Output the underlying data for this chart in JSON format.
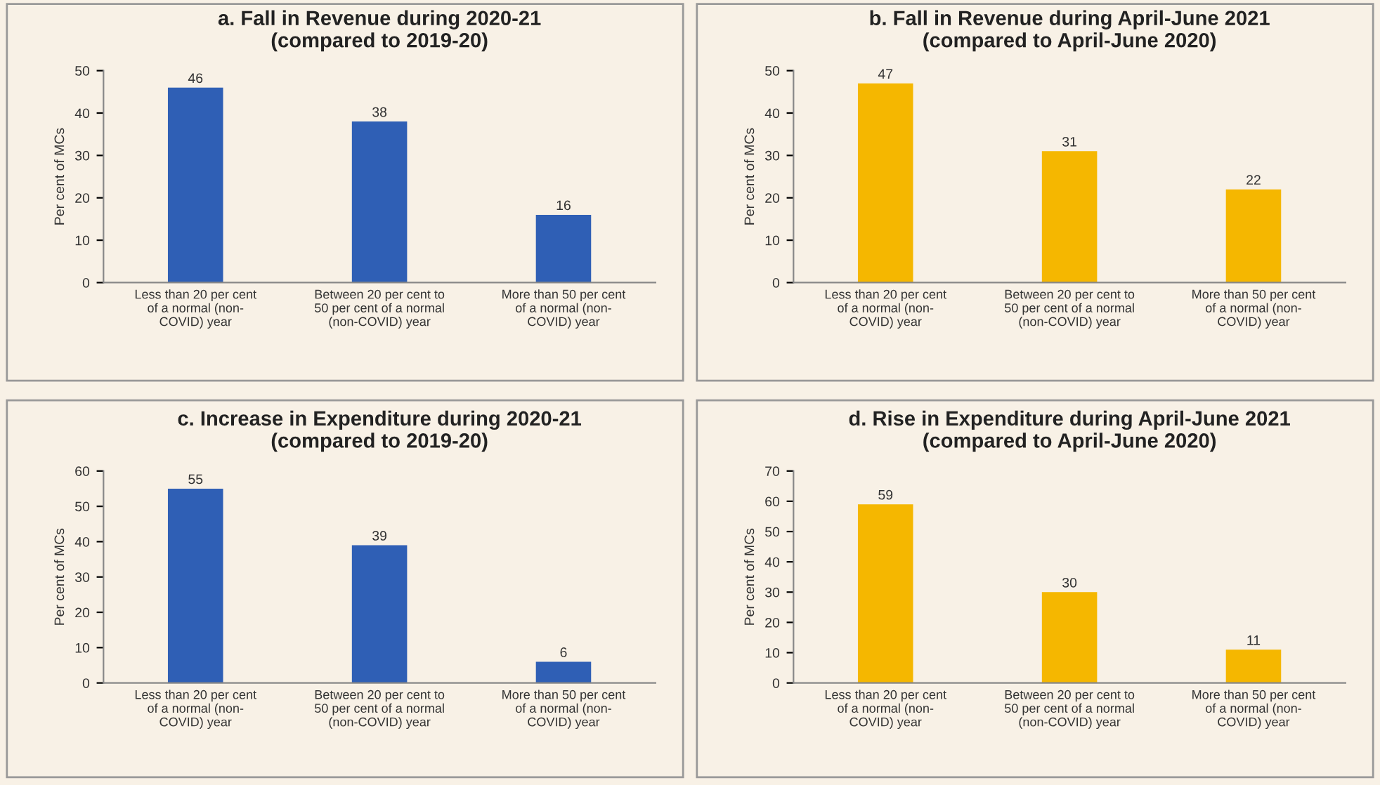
{
  "chart_data": [
    {
      "type": "bar",
      "title": "a. Fall in Revenue during 2020-21\n(compared to 2019-20)",
      "ylabel": "Per cent of MCs",
      "categories": [
        "Less than 20 per cent\nof a normal (non-\nCOVID) year",
        "Between 20 per cent to\n50 per cent of a normal\n(non-COVID) year",
        "More than 50 per cent\nof a normal (non-\nCOVID) year"
      ],
      "values": [
        46,
        38,
        16
      ],
      "color": "#2f5fb5",
      "ylim": [
        0,
        50
      ],
      "yticks": [
        0,
        10,
        20,
        30,
        40,
        50
      ],
      "data_labels": true,
      "grid": false
    },
    {
      "type": "bar",
      "title": "b. Fall in Revenue during April-June 2021\n(compared to April-June 2020)",
      "ylabel": "Per cent of MCs",
      "categories": [
        "Less than 20 per cent\nof a normal (non-\nCOVID) year",
        "Between 20 per cent to\n50 per cent of a normal\n(non-COVID) year",
        "More than 50 per cent\nof a normal (non-\nCOVID) year"
      ],
      "values": [
        47,
        31,
        22
      ],
      "color": "#f5b700",
      "ylim": [
        0,
        50
      ],
      "yticks": [
        0,
        10,
        20,
        30,
        40,
        50
      ],
      "data_labels": true,
      "grid": false
    },
    {
      "type": "bar",
      "title": "c. Increase in Expenditure during 2020-21\n(compared to 2019-20)",
      "ylabel": "Per cent of MCs",
      "categories": [
        "Less than 20 per cent\nof a normal (non-\nCOVID) year",
        "Between 20 per cent to\n50 per cent of a normal\n(non-COVID) year",
        "More than 50 per cent\nof a normal (non-\nCOVID) year"
      ],
      "values": [
        55,
        39,
        6
      ],
      "color": "#2f5fb5",
      "ylim": [
        0,
        60
      ],
      "yticks": [
        0,
        10,
        20,
        30,
        40,
        50,
        60
      ],
      "data_labels": true,
      "grid": false
    },
    {
      "type": "bar",
      "title": "d. Rise in Expenditure during April-June 2021\n(compared to April-June 2020)",
      "ylabel": "Per cent of MCs",
      "categories": [
        "Less than 20 per cent\nof a normal (non-\nCOVID) year",
        "Between 20 per cent to\n50 per cent of a normal\n(non-COVID) year",
        "More than 50 per cent\nof a normal (non-\nCOVID) year"
      ],
      "values": [
        59,
        30,
        11
      ],
      "color": "#f5b700",
      "ylim": [
        0,
        70
      ],
      "yticks": [
        0,
        10,
        20,
        30,
        40,
        50,
        60,
        70
      ],
      "data_labels": true,
      "grid": false
    }
  ]
}
